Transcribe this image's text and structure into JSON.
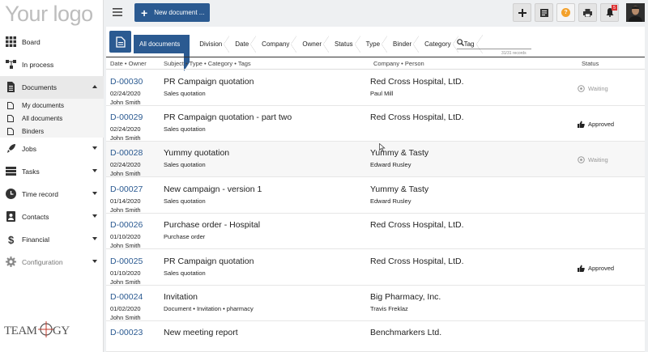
{
  "app": {
    "logo": "Your logo"
  },
  "sidebar": {
    "items": [
      {
        "label": "Board",
        "icon": "grid-icon"
      },
      {
        "label": "In process",
        "icon": "flow-icon"
      },
      {
        "label": "Documents",
        "icon": "document-icon",
        "expanded": true
      },
      {
        "label": "Jobs",
        "icon": "rocket-icon"
      },
      {
        "label": "Tasks",
        "icon": "tasks-icon"
      },
      {
        "label": "Time record",
        "icon": "clock-icon"
      },
      {
        "label": "Contacts",
        "icon": "contacts-icon"
      },
      {
        "label": "Financial",
        "icon": "dollar-icon"
      },
      {
        "label": "Configuration",
        "icon": "gear-icon"
      }
    ],
    "documents_sub": [
      {
        "label": "My documents"
      },
      {
        "label": "All documents"
      },
      {
        "label": "Binders"
      }
    ],
    "brand": "TEAMOGY"
  },
  "toolbar": {
    "new_document_label": "New document ...",
    "notification_count": "5"
  },
  "filters": {
    "crumbs": [
      "All documents",
      "Division",
      "Date",
      "Company",
      "Owner",
      "Status",
      "Type",
      "Binder",
      "Category",
      "Tag"
    ],
    "search_placeholder": "",
    "records": "31/31 records"
  },
  "table": {
    "headers": {
      "date_owner": "Date • Owner",
      "subject": "Subject • Type • Category • Tags",
      "company": "Company • Person",
      "status": "Status"
    },
    "rows": [
      {
        "id": "D-00030",
        "date": "02/24/2020",
        "owner": "John Smith",
        "subject": "PR Campaign quotation",
        "tags": "Sales quotation",
        "company": "Red Cross Hospital, LtD.",
        "person": "Paul Mill",
        "status": "Waiting"
      },
      {
        "id": "D-00029",
        "date": "02/24/2020",
        "owner": "John Smith",
        "subject": "PR Campaign quotation - part two",
        "tags": "Sales quotation",
        "company": "Red Cross Hospital, LtD.",
        "person": "",
        "status": "Approved"
      },
      {
        "id": "D-00028",
        "date": "02/24/2020",
        "owner": "John Smith",
        "subject": "Yummy quotation",
        "tags": "Sales quotation",
        "company": "Yummy & Tasty",
        "person": "Edward Rusley",
        "status": "Waiting"
      },
      {
        "id": "D-00027",
        "date": "01/14/2020",
        "owner": "John Smith",
        "subject": "New campaign - version 1",
        "tags": "Sales quotation",
        "company": "Yummy & Tasty",
        "person": "Edward Rusley",
        "status": ""
      },
      {
        "id": "D-00026",
        "date": "01/10/2020",
        "owner": "John Smith",
        "subject": "Purchase order - Hospital",
        "tags": "Purchase order",
        "company": "Red Cross Hospital, LtD.",
        "person": "",
        "status": ""
      },
      {
        "id": "D-00025",
        "date": "01/10/2020",
        "owner": "John Smith",
        "subject": "PR Campaign quotation",
        "tags": "Sales quotation",
        "company": "Red Cross Hospital, LtD.",
        "person": "",
        "status": "Approved"
      },
      {
        "id": "D-00024",
        "date": "01/02/2020",
        "owner": "John Smith",
        "subject": "Invitation",
        "tags": "Document • Invitation • pharmacy",
        "company": "Big Pharmacy, Inc.",
        "person": "Travis Freklaz",
        "status": ""
      },
      {
        "id": "D-00023",
        "date": "",
        "owner": "",
        "subject": "New meeting report",
        "tags": "",
        "company": "Benchmarkers Ltd.",
        "person": "",
        "status": ""
      }
    ]
  },
  "colors": {
    "primary": "#2b5a91",
    "help": "#f3a12b",
    "badge": "#dd3333"
  }
}
